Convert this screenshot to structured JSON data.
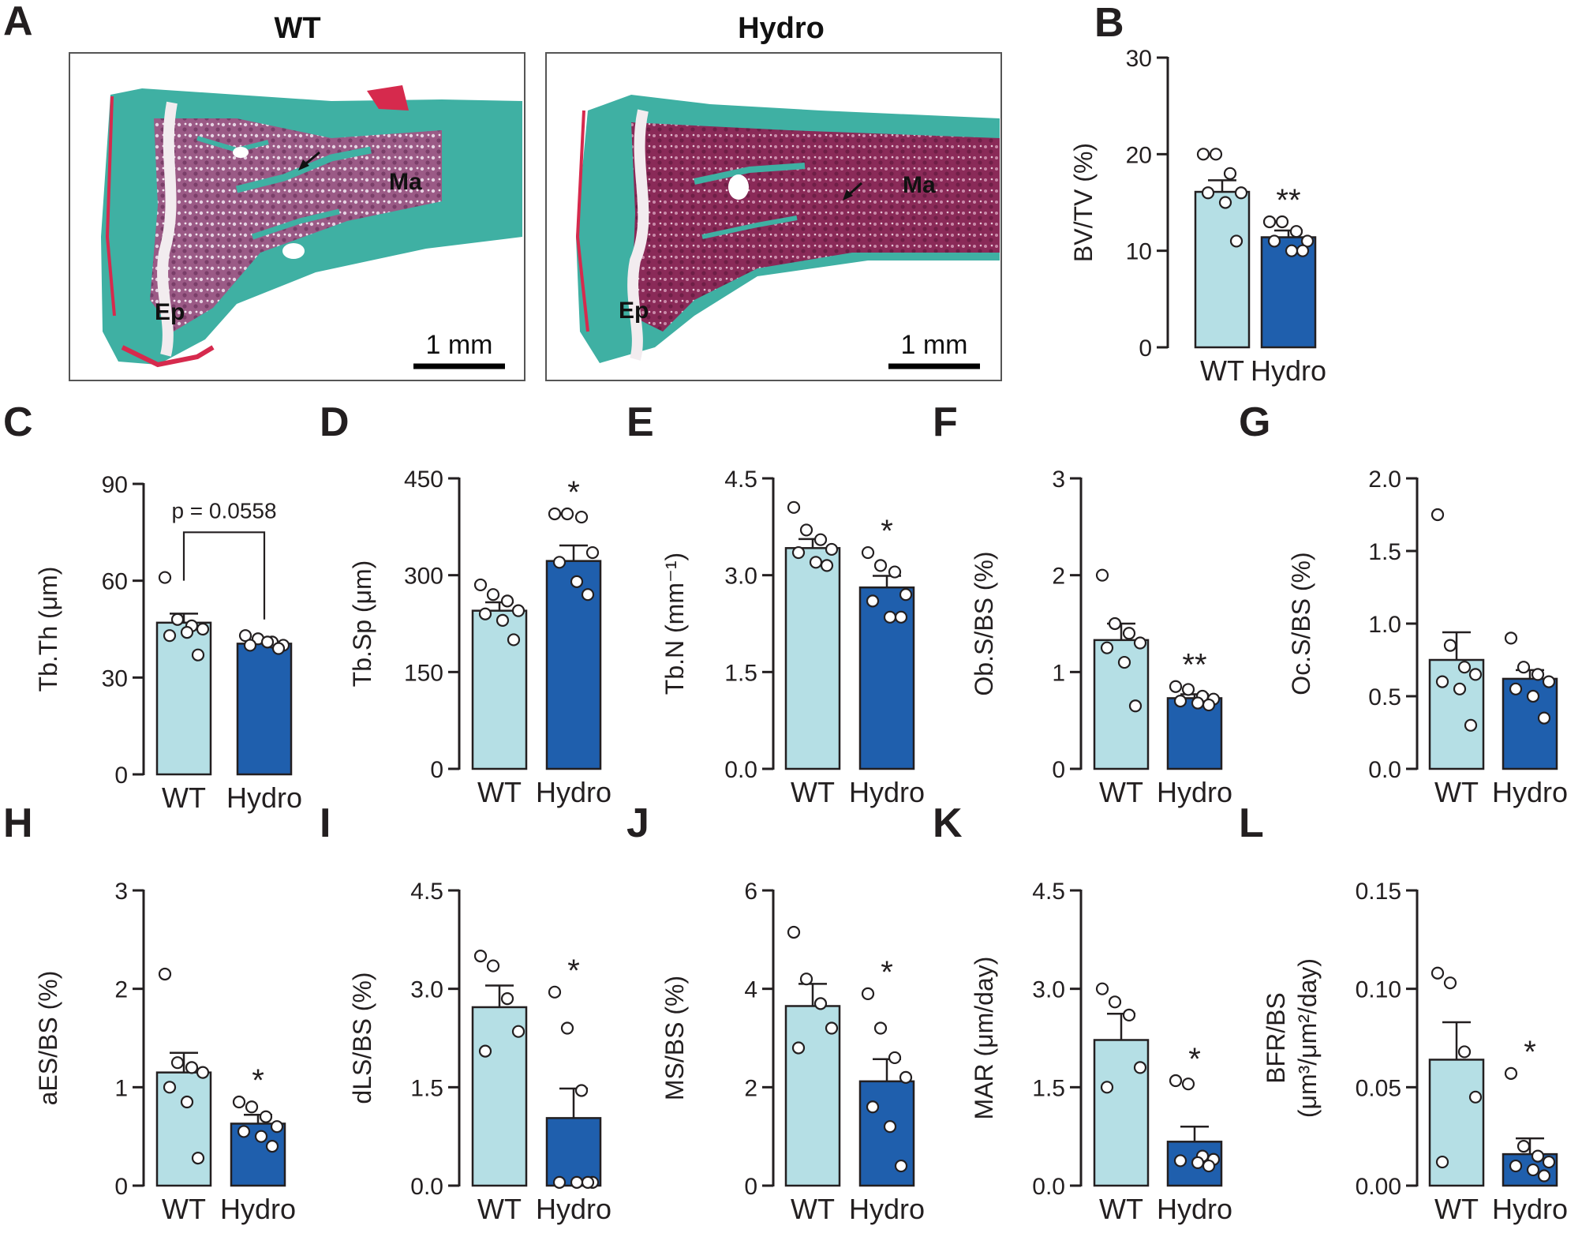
{
  "figure_panels": {
    "A": {
      "label": "A",
      "wt_title": "WT",
      "hydro_title": "Hydro",
      "wt_labels": {
        "ma": "Ma",
        "ep": "Ep",
        "scale": "1 mm"
      },
      "hydro_labels": {
        "ma": "Ma",
        "ep": "Ep",
        "scale": "1 mm"
      }
    }
  },
  "colors": {
    "wt_bar": "#b5dfe5",
    "hydro_bar": "#1f5fad",
    "axis": "#231f20",
    "stain_green": "#3fb0a3",
    "stain_magenta": "#8c2f63",
    "stain_red": "#d62a4d"
  },
  "chart_data": [
    {
      "id": "B",
      "label": "B",
      "type": "bar",
      "ylabel": "BV/TV  (%)",
      "categories": [
        "WT",
        "Hydro"
      ],
      "ylim": [
        0,
        30
      ],
      "yticks": [
        0,
        10,
        20,
        30
      ],
      "ytick_labels": [
        "0",
        "10",
        "20",
        "30"
      ],
      "means": [
        16.1,
        11.4
      ],
      "sem": [
        1.2,
        0.7
      ],
      "points": [
        [
          20,
          20,
          18,
          16,
          16,
          15,
          11
        ],
        [
          13,
          13,
          12,
          11,
          11,
          10,
          10
        ]
      ],
      "annotations": [
        "",
        "**"
      ]
    },
    {
      "id": "C",
      "label": "C",
      "type": "bar",
      "ylabel": "Tb.Th (μm)",
      "categories": [
        "WT",
        "Hydro"
      ],
      "ylim": [
        0,
        90
      ],
      "yticks": [
        0,
        30,
        60,
        90
      ],
      "ytick_labels": [
        "0",
        "30",
        "60",
        "90"
      ],
      "means": [
        47,
        40.5
      ],
      "sem": [
        2.8,
        0.8
      ],
      "points": [
        [
          61,
          48,
          46,
          45,
          43,
          44,
          37
        ],
        [
          43,
          42,
          41,
          40,
          40,
          41,
          39
        ]
      ],
      "annotations": [
        "",
        ""
      ],
      "bracket": "p = 0.0558"
    },
    {
      "id": "D",
      "label": "D",
      "type": "bar",
      "ylabel": "Tb.Sp (μm)",
      "categories": [
        "WT",
        "Hydro"
      ],
      "ylim": [
        0,
        450
      ],
      "yticks": [
        0,
        150,
        300,
        450
      ],
      "ytick_labels": [
        "0",
        "150",
        "300",
        "450"
      ],
      "means": [
        245,
        322
      ],
      "sem": [
        13,
        24
      ],
      "points": [
        [
          285,
          270,
          260,
          245,
          240,
          230,
          200
        ],
        [
          395,
          395,
          390,
          335,
          320,
          290,
          270
        ]
      ],
      "annotations": [
        "",
        "*"
      ]
    },
    {
      "id": "E",
      "label": "E",
      "type": "bar",
      "ylabel": "Tb.N (mm⁻¹)",
      "categories": [
        "WT",
        "Hydro"
      ],
      "ylim": [
        0,
        4.5
      ],
      "yticks": [
        0,
        1.5,
        3.0,
        4.5
      ],
      "ytick_labels": [
        "0.0",
        "1.5",
        "3.0",
        "4.5"
      ],
      "means": [
        3.42,
        2.81
      ],
      "sem": [
        0.14,
        0.18
      ],
      "points": [
        [
          4.05,
          3.7,
          3.55,
          3.4,
          3.35,
          3.2,
          3.15
        ],
        [
          3.35,
          3.15,
          3.05,
          2.7,
          2.6,
          2.35,
          2.35
        ]
      ],
      "annotations": [
        "",
        "*"
      ]
    },
    {
      "id": "F",
      "label": "F",
      "type": "bar",
      "ylabel": "Ob.S/BS (%)",
      "categories": [
        "WT",
        "Hydro"
      ],
      "ylim": [
        0,
        3
      ],
      "yticks": [
        0,
        1,
        2,
        3
      ],
      "ytick_labels": [
        "0",
        "1",
        "2",
        "3"
      ],
      "means": [
        1.33,
        0.73
      ],
      "sem": [
        0.17,
        0.04
      ],
      "points": [
        [
          2.0,
          1.5,
          1.4,
          1.3,
          1.25,
          1.1,
          0.65
        ],
        [
          0.85,
          0.82,
          0.75,
          0.72,
          0.7,
          0.68,
          0.66
        ]
      ],
      "annotations": [
        "",
        "**"
      ]
    },
    {
      "id": "G",
      "label": "G",
      "type": "bar",
      "ylabel": "Oc.S/BS (%)",
      "categories": [
        "WT",
        "Hydro"
      ],
      "ylim": [
        0,
        2.0
      ],
      "yticks": [
        0,
        0.5,
        1.0,
        1.5,
        2.0
      ],
      "ytick_labels": [
        "0.0",
        "0.5",
        "1.0",
        "1.5",
        "2.0"
      ],
      "means": [
        0.75,
        0.62
      ],
      "sem": [
        0.19,
        0.06
      ],
      "points": [
        [
          1.75,
          0.85,
          0.7,
          0.65,
          0.6,
          0.55,
          0.3
        ],
        [
          0.9,
          0.7,
          0.65,
          0.6,
          0.55,
          0.5,
          0.35
        ]
      ],
      "annotations": [
        "",
        ""
      ]
    },
    {
      "id": "H",
      "label": "H",
      "type": "bar",
      "ylabel": "aES/BS (%)",
      "categories": [
        "WT",
        "Hydro"
      ],
      "ylim": [
        0,
        3
      ],
      "yticks": [
        0,
        1,
        2,
        3
      ],
      "ytick_labels": [
        "0",
        "1",
        "2",
        "3"
      ],
      "means": [
        1.15,
        0.63
      ],
      "sem": [
        0.2,
        0.09
      ],
      "points": [
        [
          2.15,
          1.25,
          1.2,
          1.15,
          1.0,
          0.85,
          0.28
        ],
        [
          0.85,
          0.8,
          0.7,
          0.6,
          0.55,
          0.5,
          0.4
        ]
      ],
      "annotations": [
        "",
        "*"
      ]
    },
    {
      "id": "I",
      "label": "I",
      "type": "bar",
      "ylabel": "dLS/BS (%)",
      "categories": [
        "WT",
        "Hydro"
      ],
      "ylim": [
        0,
        4.5
      ],
      "yticks": [
        0,
        1.5,
        3.0,
        4.5
      ],
      "ytick_labels": [
        "0.0",
        "1.5",
        "3.0",
        "4.5"
      ],
      "means": [
        2.72,
        1.03
      ],
      "sem": [
        0.33,
        0.45
      ],
      "points": [
        [
          3.5,
          3.35,
          2.85,
          2.35,
          2.05
        ],
        [
          2.95,
          2.4,
          1.45,
          0.05,
          0.05,
          0.05,
          0.05
        ]
      ],
      "annotations": [
        "",
        "*"
      ]
    },
    {
      "id": "J",
      "label": "J",
      "type": "bar",
      "ylabel": "MS/BS (%)",
      "categories": [
        "WT",
        "Hydro"
      ],
      "ylim": [
        0,
        6
      ],
      "yticks": [
        0,
        2,
        4,
        6
      ],
      "ytick_labels": [
        "0",
        "2",
        "4",
        "6"
      ],
      "means": [
        3.65,
        2.12
      ],
      "sem": [
        0.45,
        0.45
      ],
      "points": [
        [
          5.15,
          4.2,
          3.7,
          3.2,
          2.8
        ],
        [
          3.9,
          3.2,
          2.6,
          2.2,
          1.6,
          1.2,
          0.4
        ]
      ],
      "annotations": [
        "",
        "*"
      ]
    },
    {
      "id": "K",
      "label": "K",
      "type": "bar",
      "ylabel": "MAR (μm/day)",
      "categories": [
        "WT",
        "Hydro"
      ],
      "ylim": [
        0,
        4.5
      ],
      "yticks": [
        0,
        1.5,
        3.0,
        4.5
      ],
      "ytick_labels": [
        "0.0",
        "1.5",
        "3.0",
        "4.5"
      ],
      "means": [
        2.22,
        0.67
      ],
      "sem": [
        0.4,
        0.23
      ],
      "points": [
        [
          3.0,
          2.8,
          2.6,
          1.8,
          1.5
        ],
        [
          1.6,
          1.55,
          0.45,
          0.4,
          0.38,
          0.35,
          0.3
        ]
      ],
      "annotations": [
        "",
        "*"
      ]
    },
    {
      "id": "L",
      "label": "L",
      "type": "bar",
      "ylabel": "BFR/BS",
      "ylabel2": "(μm³/μm²/day)",
      "categories": [
        "WT",
        "Hydro"
      ],
      "ylim": [
        0,
        0.15
      ],
      "yticks": [
        0,
        0.05,
        0.1,
        0.15
      ],
      "ytick_labels": [
        "0.00",
        "0.05",
        "0.10",
        "0.15"
      ],
      "means": [
        0.064,
        0.016
      ],
      "sem": [
        0.019,
        0.008
      ],
      "points": [
        [
          0.108,
          0.103,
          0.068,
          0.045,
          0.012
        ],
        [
          0.057,
          0.02,
          0.015,
          0.012,
          0.01,
          0.008,
          0.005
        ]
      ],
      "annotations": [
        "",
        "*"
      ]
    }
  ]
}
